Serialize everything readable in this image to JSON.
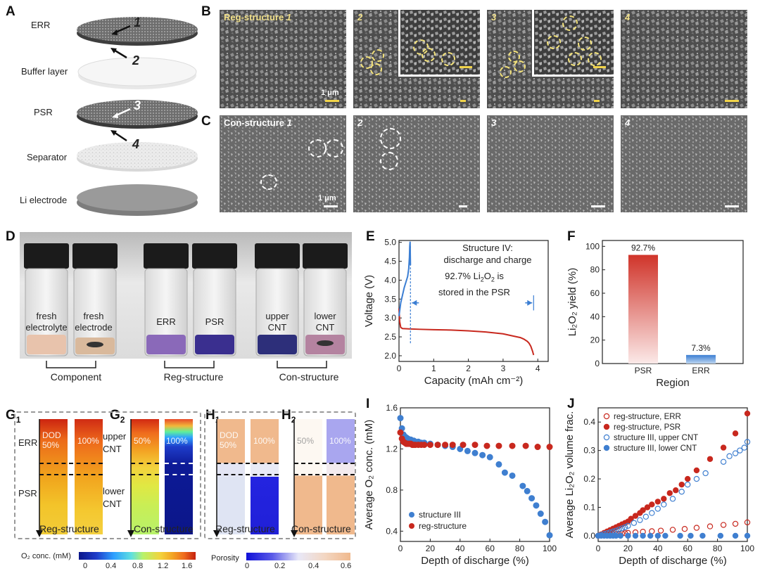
{
  "panels": {
    "A": "A",
    "B": "B",
    "C": "C",
    "D": "D",
    "E": "E",
    "F": "F",
    "G1": "G",
    "G1s": "1",
    "G2": "G",
    "G2s": "2",
    "H1": "H",
    "H1s": "1",
    "H2": "H",
    "H2s": "2",
    "I": "I",
    "J": "J"
  },
  "panelA": {
    "layers": [
      "ERR",
      "Buffer layer",
      "PSR",
      "Separator",
      "Li electrode"
    ],
    "markers": [
      "1",
      "2",
      "3",
      "4"
    ]
  },
  "panelB": {
    "title": "Reg-structure",
    "nums": [
      "1",
      "2",
      "3",
      "4"
    ],
    "scale": "1 μm"
  },
  "panelC": {
    "title": "Con-structure",
    "nums": [
      "1",
      "2",
      "3",
      "4"
    ],
    "scale": "1 μm"
  },
  "panelD": {
    "vials": [
      "fresh electrolyte",
      "fresh electrode",
      "ERR",
      "PSR",
      "upper CNT",
      "lower CNT"
    ],
    "vials_l1": [
      "fresh",
      "fresh",
      "ERR",
      "PSR",
      "upper",
      "lower"
    ],
    "vials_l2": [
      "electrolyte",
      "electrode",
      "",
      "",
      "CNT",
      "CNT"
    ],
    "groups": [
      "Component",
      "Reg-structure",
      "Con-structure"
    ]
  },
  "panelE": {
    "annot1": "Structure IV:",
    "annot2": "discharge and charge",
    "annot3a": "92.7% Li",
    "annot3b": "O",
    "annot3c": " is",
    "annot4": "stored in the PSR"
  },
  "panelG": {
    "g1_labels": [
      "ERR",
      "PSR"
    ],
    "g2_labels": [
      "upper",
      "CNT",
      "lower",
      "CNT"
    ],
    "dod": [
      "DOD",
      "50%",
      "100%"
    ],
    "g2_50": "50%",
    "g2_100": "100%",
    "g1_caption": "Reg-structure",
    "g2_caption": "Con-structure",
    "cbar_label": "O₂ conc. (mM)",
    "cbar_ticks": [
      "0",
      "0.4",
      "0.8",
      "1.2",
      "1.6"
    ]
  },
  "panelH": {
    "dod": [
      "DOD",
      "50%",
      "100%"
    ],
    "h2_50": "50%",
    "h2_100": "100%",
    "h1_caption": "Reg-structure",
    "h2_caption": "Con-structure",
    "cbar_label": "Porosity",
    "cbar_ticks": [
      "0",
      "0.2",
      "0.4",
      "0.6"
    ]
  },
  "chart_data": [
    {
      "id": "E",
      "type": "line",
      "title": "",
      "xlabel": "Capacity (mAh cm⁻²)",
      "ylabel": "Voltage (V)",
      "xlim": [
        0,
        4.3
      ],
      "ylim": [
        1.85,
        5.05
      ],
      "xticks": [
        "0",
        "1",
        "2",
        "3",
        "4"
      ],
      "yticks": [
        "2.0",
        "2.5",
        "3.0",
        "3.5",
        "4.0",
        "4.5",
        "5.0"
      ],
      "series": [
        {
          "name": "discharge",
          "color": "#c8281e",
          "x": [
            0,
            0.02,
            0.05,
            0.1,
            0.3,
            0.6,
            1.0,
            1.5,
            2.0,
            2.5,
            3.0,
            3.3,
            3.5,
            3.6,
            3.7,
            3.75,
            3.8,
            3.85,
            3.88
          ],
          "y": [
            3.25,
            2.9,
            2.75,
            2.72,
            2.71,
            2.7,
            2.69,
            2.68,
            2.66,
            2.63,
            2.58,
            2.52,
            2.48,
            2.44,
            2.38,
            2.33,
            2.25,
            2.12,
            2.02
          ]
        },
        {
          "name": "charge",
          "color": "#3b7ed3",
          "x": [
            0,
            0.05,
            0.1,
            0.15,
            0.2,
            0.25,
            0.28,
            0.3,
            0.31,
            0.32,
            0.33
          ],
          "y": [
            3.05,
            3.4,
            3.6,
            3.8,
            3.95,
            4.1,
            4.3,
            4.6,
            4.9,
            5.02,
            4.4
          ]
        }
      ]
    },
    {
      "id": "F",
      "type": "bar",
      "xlabel": "Region",
      "ylabel": "Li₂O₂ yield (%)",
      "categories": [
        "PSR",
        "ERR"
      ],
      "values": [
        92.7,
        7.3
      ],
      "value_labels": [
        "92.7%",
        "7.3%"
      ],
      "ylim": [
        0,
        105
      ],
      "yticks": [
        "0",
        "20",
        "40",
        "60",
        "80",
        "100"
      ],
      "colors": [
        "#c8281e",
        "#3b7ed3"
      ]
    },
    {
      "id": "I",
      "type": "scatter",
      "xlabel": "Depth of discharge (%)",
      "ylabel": "Average O₂ conc. (mM)",
      "xlim": [
        0,
        100
      ],
      "ylim": [
        0.3,
        1.6
      ],
      "xticks": [
        "0",
        "20",
        "40",
        "60",
        "80",
        "100"
      ],
      "yticks": [
        "0.4",
        "0.8",
        "1.2",
        "1.6"
      ],
      "legend": [
        "structure III",
        "reg-structure"
      ],
      "series": [
        {
          "name": "structure III",
          "color": "#3f7fd0",
          "x": [
            0,
            1,
            2,
            3,
            4,
            5,
            6,
            7,
            8,
            9,
            10,
            12,
            14,
            16,
            20,
            25,
            30,
            35,
            40,
            45,
            50,
            55,
            60,
            66,
            70,
            75,
            82,
            85,
            88,
            91,
            94,
            97,
            100
          ],
          "y": [
            1.5,
            1.4,
            1.34,
            1.32,
            1.31,
            1.3,
            1.29,
            1.29,
            1.28,
            1.28,
            1.27,
            1.27,
            1.26,
            1.26,
            1.25,
            1.24,
            1.23,
            1.22,
            1.2,
            1.18,
            1.16,
            1.14,
            1.12,
            1.05,
            0.97,
            0.94,
            0.84,
            0.79,
            0.72,
            0.65,
            0.57,
            0.49,
            0.36
          ]
        },
        {
          "name": "reg-structure",
          "color": "#c8281e",
          "x": [
            0,
            1,
            2,
            3,
            4,
            5,
            6,
            7,
            8,
            9,
            10,
            12,
            14,
            16,
            20,
            25,
            30,
            35,
            42,
            50,
            58,
            66,
            75,
            84,
            92,
            100
          ],
          "y": [
            1.36,
            1.3,
            1.27,
            1.26,
            1.25,
            1.25,
            1.25,
            1.25,
            1.24,
            1.24,
            1.24,
            1.24,
            1.24,
            1.24,
            1.24,
            1.24,
            1.24,
            1.24,
            1.24,
            1.24,
            1.23,
            1.23,
            1.23,
            1.23,
            1.22,
            1.22
          ]
        }
      ]
    },
    {
      "id": "J",
      "type": "scatter",
      "xlabel": "Depth of discharge (%)",
      "ylabel": "Average Li₂O₂ volume frac.",
      "xlim": [
        0,
        100
      ],
      "ylim": [
        -0.02,
        0.45
      ],
      "xticks": [
        "0",
        "20",
        "40",
        "60",
        "80",
        "100"
      ],
      "yticks": [
        "0.0",
        "0.1",
        "0.2",
        "0.3",
        "0.4"
      ],
      "legend": [
        "reg-structure, ERR",
        "reg-structure, PSR",
        "structure III, upper CNT",
        "structure III, lower CNT"
      ],
      "series": [
        {
          "name": "reg-structure, ERR",
          "color": "#c8281e",
          "filled": false,
          "x": [
            0,
            2,
            4,
            6,
            8,
            10,
            12,
            14,
            16,
            18,
            20,
            25,
            30,
            36,
            42,
            50,
            58,
            66,
            75,
            84,
            92,
            100
          ],
          "y": [
            0,
            0.001,
            0.002,
            0.003,
            0.004,
            0.005,
            0.006,
            0.007,
            0.008,
            0.009,
            0.01,
            0.012,
            0.014,
            0.016,
            0.018,
            0.021,
            0.024,
            0.028,
            0.033,
            0.038,
            0.042,
            0.047
          ]
        },
        {
          "name": "reg-structure, PSR",
          "color": "#c8281e",
          "filled": true,
          "x": [
            0,
            2,
            4,
            6,
            8,
            10,
            12,
            14,
            16,
            18,
            20,
            22,
            25,
            28,
            30,
            33,
            36,
            40,
            44,
            48,
            52,
            56,
            60,
            66,
            75,
            84,
            92,
            100
          ],
          "y": [
            0,
            0.005,
            0.01,
            0.015,
            0.02,
            0.025,
            0.03,
            0.035,
            0.04,
            0.045,
            0.05,
            0.06,
            0.07,
            0.08,
            0.09,
            0.1,
            0.11,
            0.12,
            0.13,
            0.15,
            0.16,
            0.18,
            0.2,
            0.23,
            0.27,
            0.31,
            0.36,
            0.43
          ]
        },
        {
          "name": "structure III, upper CNT",
          "color": "#3f7fd0",
          "filled": false,
          "x": [
            0,
            2,
            4,
            6,
            8,
            10,
            12,
            14,
            16,
            18,
            20,
            24,
            28,
            32,
            36,
            40,
            44,
            50,
            56,
            60,
            66,
            72,
            84,
            88,
            92,
            95,
            98,
            100
          ],
          "y": [
            0,
            0.003,
            0.006,
            0.009,
            0.012,
            0.015,
            0.018,
            0.022,
            0.026,
            0.03,
            0.035,
            0.045,
            0.055,
            0.067,
            0.08,
            0.095,
            0.11,
            0.13,
            0.155,
            0.18,
            0.2,
            0.22,
            0.26,
            0.28,
            0.29,
            0.3,
            0.31,
            0.33
          ]
        },
        {
          "name": "structure III, lower CNT",
          "color": "#3f7fd0",
          "filled": true,
          "x": [
            0,
            2,
            4,
            6,
            8,
            10,
            12,
            15,
            20,
            25,
            30,
            35,
            40,
            45,
            55,
            62,
            70,
            82,
            92,
            100
          ],
          "y": [
            0,
            0,
            0,
            0,
            0,
            0,
            0,
            0,
            0,
            0,
            0,
            0,
            0,
            0,
            0,
            0,
            0,
            0,
            0,
            0
          ]
        }
      ]
    }
  ]
}
